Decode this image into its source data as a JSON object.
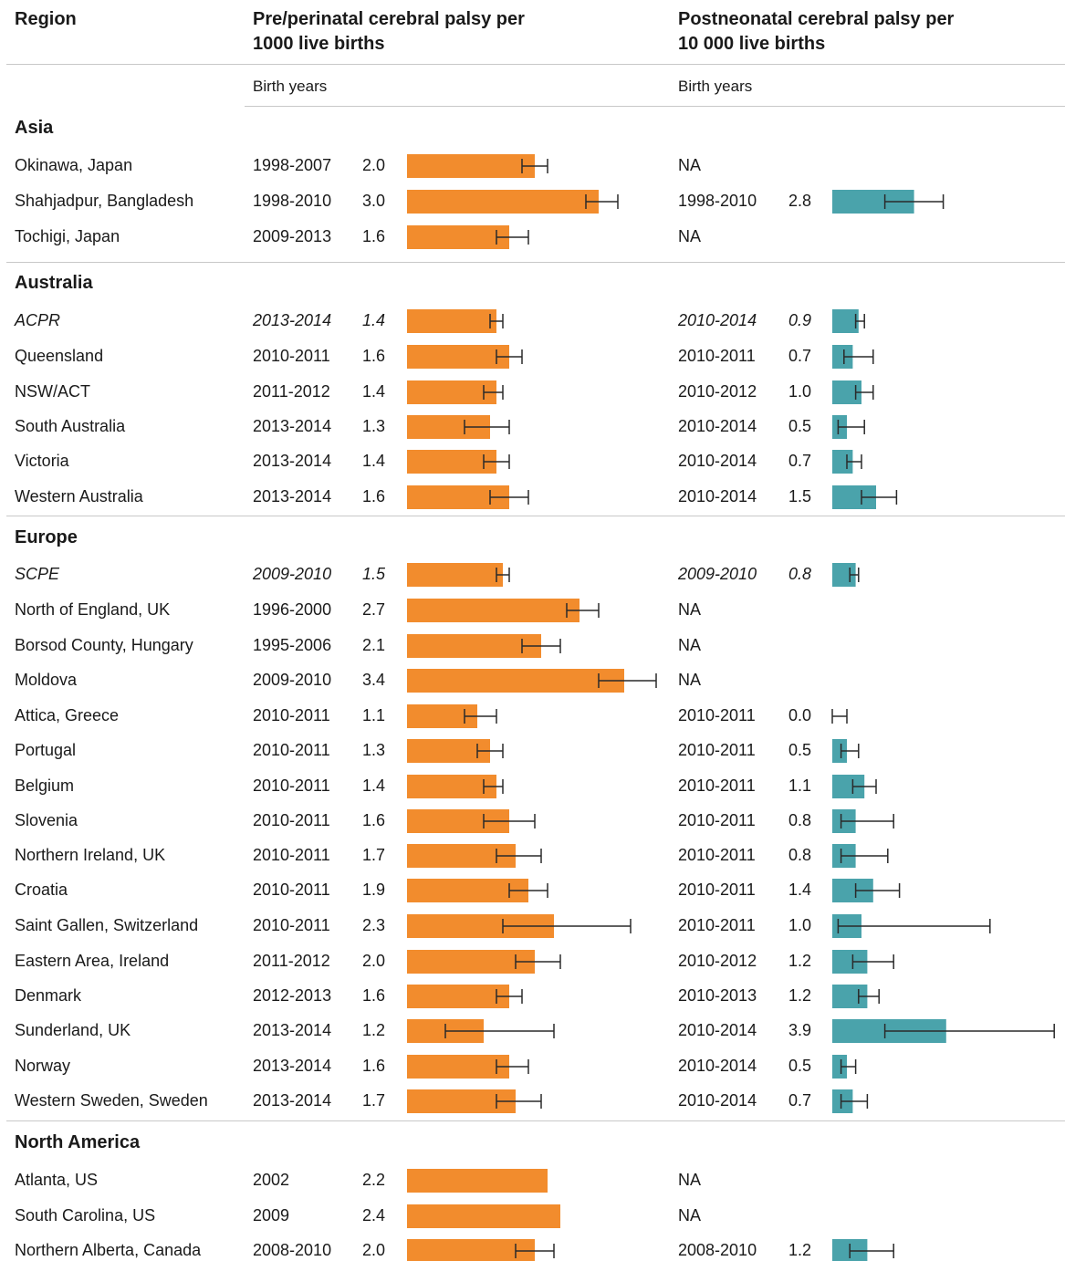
{
  "header": {
    "region": "Region",
    "pre_title_line1": "Pre/perinatal cerebral palsy per",
    "pre_title_line2": "1000 live births",
    "post_title_line1": "Postneonatal cerebral palsy per",
    "post_title_line2": "10 000 live births",
    "birth_years_pre": "Birth years",
    "birth_years_post": "Birth years"
  },
  "colors": {
    "pre_bar": "#f28c2d",
    "post_bar": "#4aa3ab",
    "error_bar": "#2a2a2a"
  },
  "chart_data": {
    "type": "bar",
    "orientation": "horizontal",
    "groups": [
      {
        "name": "Asia",
        "rows": [
          {
            "region": "Okinawa, Japan",
            "pre_years": "1998-2007",
            "pre": 2.0,
            "pre_ci": [
              1.8,
              2.2
            ],
            "post_years": "NA",
            "post": null,
            "post_ci": null
          },
          {
            "region": "Shahjadpur, Bangladesh",
            "pre_years": "1998-2010",
            "pre": 3.0,
            "pre_ci": [
              2.8,
              3.3
            ],
            "post_years": "1998-2010",
            "post": 2.8,
            "post_ci": [
              1.8,
              3.8
            ]
          },
          {
            "region": "Tochigi, Japan",
            "pre_years": "2009-2013",
            "pre": 1.6,
            "pre_ci": [
              1.4,
              1.9
            ],
            "post_years": "NA",
            "post": null,
            "post_ci": null
          }
        ]
      },
      {
        "name": "Australia",
        "rows": [
          {
            "region": "ACPR",
            "italic": true,
            "pre_years": "2013-2014",
            "pre": 1.4,
            "pre_ci": [
              1.3,
              1.5
            ],
            "post_years": "2010-2014",
            "post": 0.9,
            "post_ci": [
              0.8,
              1.1
            ]
          },
          {
            "region": "Queensland",
            "pre_years": "2010-2011",
            "pre": 1.6,
            "pre_ci": [
              1.4,
              1.8
            ],
            "post_years": "2010-2011",
            "post": 0.7,
            "post_ci": [
              0.4,
              1.4
            ]
          },
          {
            "region": "NSW/ACT",
            "pre_years": "2011-2012",
            "pre": 1.4,
            "pre_ci": [
              1.2,
              1.5
            ],
            "post_years": "2010-2012",
            "post": 1.0,
            "post_ci": [
              0.8,
              1.4
            ]
          },
          {
            "region": "South Australia",
            "pre_years": "2013-2014",
            "pre": 1.3,
            "pre_ci": [
              0.9,
              1.6
            ],
            "post_years": "2010-2014",
            "post": 0.5,
            "post_ci": [
              0.2,
              1.1
            ]
          },
          {
            "region": "Victoria",
            "pre_years": "2013-2014",
            "pre": 1.4,
            "pre_ci": [
              1.2,
              1.6
            ],
            "post_years": "2010-2014",
            "post": 0.7,
            "post_ci": [
              0.5,
              1.0
            ]
          },
          {
            "region": "Western Australia",
            "pre_years": "2013-2014",
            "pre": 1.6,
            "pre_ci": [
              1.3,
              1.9
            ],
            "post_years": "2010-2014",
            "post": 1.5,
            "post_ci": [
              1.0,
              2.2
            ]
          }
        ]
      },
      {
        "name": "Europe",
        "rows": [
          {
            "region": "SCPE",
            "italic": true,
            "pre_years": "2009-2010",
            "pre": 1.5,
            "pre_ci": [
              1.4,
              1.6
            ],
            "post_years": "2009-2010",
            "post": 0.8,
            "post_ci": [
              0.6,
              0.9
            ]
          },
          {
            "region": "North of England, UK",
            "pre_years": "1996-2000",
            "pre": 2.7,
            "pre_ci": [
              2.5,
              3.0
            ],
            "post_years": "NA",
            "post": null,
            "post_ci": null
          },
          {
            "region": "Borsod County, Hungary",
            "pre_years": "1995-2006",
            "pre": 2.1,
            "pre_ci": [
              1.8,
              2.4
            ],
            "post_years": "NA",
            "post": null,
            "post_ci": null
          },
          {
            "region": "Moldova",
            "pre_years": "2009-2010",
            "pre": 3.4,
            "pre_ci": [
              3.0,
              3.9
            ],
            "post_years": "NA",
            "post": null,
            "post_ci": null
          },
          {
            "region": "Attica, Greece",
            "pre_years": "2010-2011",
            "pre": 1.1,
            "pre_ci": [
              0.9,
              1.4
            ],
            "post_years": "2010-2011",
            "post": 0.0,
            "post_ci": [
              0.0,
              0.5
            ]
          },
          {
            "region": "Portugal",
            "pre_years": "2010-2011",
            "pre": 1.3,
            "pre_ci": [
              1.1,
              1.5
            ],
            "post_years": "2010-2011",
            "post": 0.5,
            "post_ci": [
              0.3,
              0.9
            ]
          },
          {
            "region": "Belgium",
            "pre_years": "2010-2011",
            "pre": 1.4,
            "pre_ci": [
              1.2,
              1.5
            ],
            "post_years": "2010-2011",
            "post": 1.1,
            "post_ci": [
              0.7,
              1.5
            ]
          },
          {
            "region": "Slovenia",
            "pre_years": "2010-2011",
            "pre": 1.6,
            "pre_ci": [
              1.2,
              2.0
            ],
            "post_years": "2010-2011",
            "post": 0.8,
            "post_ci": [
              0.3,
              2.1
            ]
          },
          {
            "region": "Northern Ireland, UK",
            "pre_years": "2010-2011",
            "pre": 1.7,
            "pre_ci": [
              1.4,
              2.1
            ],
            "post_years": "2010-2011",
            "post": 0.8,
            "post_ci": [
              0.3,
              1.9
            ]
          },
          {
            "region": "Croatia",
            "pre_years": "2010-2011",
            "pre": 1.9,
            "pre_ci": [
              1.6,
              2.2
            ],
            "post_years": "2010-2011",
            "post": 1.4,
            "post_ci": [
              0.8,
              2.3
            ]
          },
          {
            "region": "Saint Gallen, Switzerland",
            "pre_years": "2010-2011",
            "pre": 2.3,
            "pre_ci": [
              1.5,
              3.5
            ],
            "post_years": "2010-2011",
            "post": 1.0,
            "post_ci": [
              0.2,
              5.4
            ]
          },
          {
            "region": "Eastern Area, Ireland",
            "pre_years": "2011-2012",
            "pre": 2.0,
            "pre_ci": [
              1.7,
              2.4
            ],
            "post_years": "2010-2012",
            "post": 1.2,
            "post_ci": [
              0.7,
              2.1
            ]
          },
          {
            "region": "Denmark",
            "pre_years": "2012-2013",
            "pre": 1.6,
            "pre_ci": [
              1.4,
              1.8
            ],
            "post_years": "2010-2013",
            "post": 1.2,
            "post_ci": [
              0.9,
              1.6
            ]
          },
          {
            "region": "Sunderland, UK",
            "pre_years": "2013-2014",
            "pre": 1.2,
            "pre_ci": [
              0.6,
              2.3
            ],
            "post_years": "2010-2014",
            "post": 3.9,
            "post_ci": [
              1.8,
              7.6
            ]
          },
          {
            "region": "Norway",
            "pre_years": "2013-2014",
            "pre": 1.6,
            "pre_ci": [
              1.4,
              1.9
            ],
            "post_years": "2010-2014",
            "post": 0.5,
            "post_ci": [
              0.3,
              0.8
            ]
          },
          {
            "region": "Western Sweden, Sweden",
            "pre_years": "2013-2014",
            "pre": 1.7,
            "pre_ci": [
              1.4,
              2.1
            ],
            "post_years": "2010-2014",
            "post": 0.7,
            "post_ci": [
              0.3,
              1.2
            ]
          }
        ]
      },
      {
        "name": "North America",
        "rows": [
          {
            "region": "Atlanta, US",
            "pre_years": "2002",
            "pre": 2.2,
            "pre_ci": null,
            "post_years": "NA",
            "post": null,
            "post_ci": null
          },
          {
            "region": "South Carolina, US",
            "pre_years": "2009",
            "pre": 2.4,
            "pre_ci": null,
            "post_years": "NA",
            "post": null,
            "post_ci": null
          },
          {
            "region": "Northern Alberta, Canada",
            "pre_years": "2008-2010",
            "pre": 2.0,
            "pre_ci": [
              1.7,
              2.3
            ],
            "post_years": "2008-2010",
            "post": 1.2,
            "post_ci": [
              0.6,
              2.1
            ]
          }
        ]
      }
    ]
  }
}
